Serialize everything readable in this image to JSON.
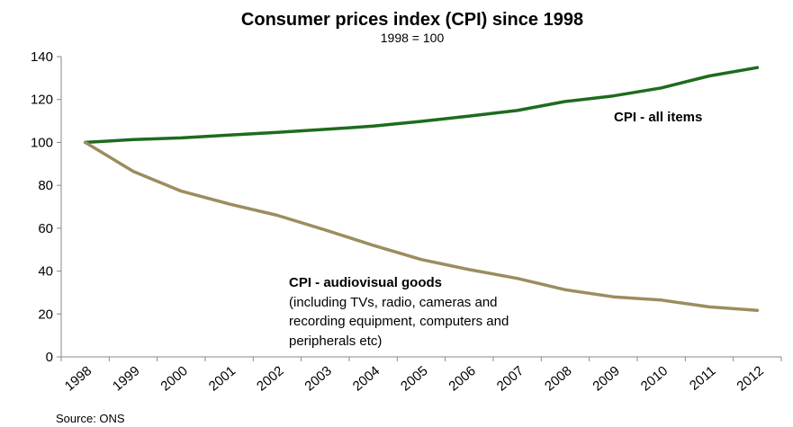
{
  "chart_data": {
    "type": "line",
    "title": "Consumer prices index (CPI) since 1998",
    "subtitle": "1998 = 100",
    "xlabel": "",
    "ylabel": "",
    "x": [
      "1998",
      "1999",
      "2000",
      "2001",
      "2002",
      "2003",
      "2004",
      "2005",
      "2006",
      "2007",
      "2008",
      "2009",
      "2010",
      "2011",
      "2012"
    ],
    "ylim": [
      0,
      140
    ],
    "yticks": [
      0,
      20,
      40,
      60,
      80,
      100,
      120,
      140
    ],
    "grid": false,
    "series": [
      {
        "name": "CPI - all items",
        "color": "#1e6b1e",
        "values": [
          100,
          101.3,
          102.1,
          103.4,
          104.7,
          106.1,
          107.6,
          109.8,
          112.3,
          114.9,
          119.1,
          121.7,
          125.4,
          131.0,
          134.9
        ]
      },
      {
        "name": "CPI - audiovisual goods",
        "color": "#9b8d5f",
        "values": [
          100,
          86.5,
          77.3,
          71.3,
          66.0,
          59.2,
          52.0,
          45.4,
          40.7,
          36.6,
          31.3,
          28.0,
          26.5,
          23.3,
          21.7
        ]
      }
    ],
    "annotations": {
      "all_items_label": "CPI - all items",
      "audiovisual_label": "CPI - audiovisual goods",
      "audiovisual_note_1": "(including TVs, radio, cameras and",
      "audiovisual_note_2": "recording equipment, computers and",
      "audiovisual_note_3": "peripherals etc)"
    },
    "source": "Source: ONS"
  }
}
